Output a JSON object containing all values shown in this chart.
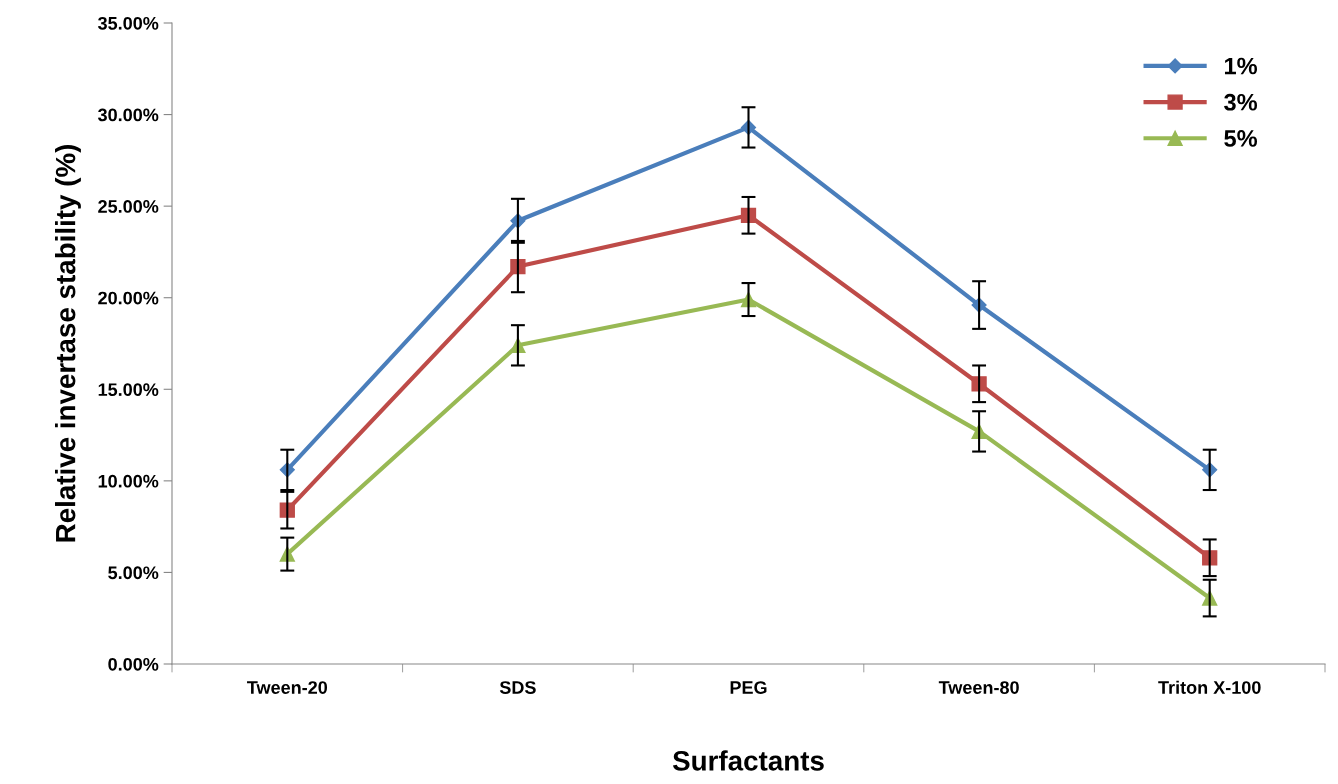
{
  "chart_data": {
    "type": "line",
    "xlabel": "Surfactants",
    "ylabel": "Relative invertase stability (%)",
    "categories": [
      "Tween-20",
      "SDS",
      "PEG",
      "Tween-80",
      "Triton X-100"
    ],
    "series": [
      {
        "name": "1%",
        "color": "#4a7ebb",
        "marker": "diamond",
        "values": [
          10.6,
          24.2,
          29.3,
          19.6,
          10.6
        ],
        "errors": [
          1.1,
          1.2,
          1.1,
          1.3,
          1.1
        ]
      },
      {
        "name": "3%",
        "color": "#be4b48",
        "marker": "square",
        "values": [
          8.4,
          21.7,
          24.5,
          15.3,
          5.8
        ],
        "errors": [
          1.0,
          1.4,
          1.0,
          1.0,
          1.0
        ]
      },
      {
        "name": "5%",
        "color": "#98b954",
        "marker": "triangle",
        "values": [
          6.0,
          17.4,
          19.9,
          12.7,
          3.6
        ],
        "errors": [
          0.9,
          1.1,
          0.9,
          1.1,
          1.0
        ]
      }
    ],
    "ylim": [
      0,
      35
    ],
    "yticks": [
      {
        "value": 0,
        "label": "0.00%"
      },
      {
        "value": 5,
        "label": "5.00%"
      },
      {
        "value": 10,
        "label": "10.00%"
      },
      {
        "value": 15,
        "label": "15.00%"
      },
      {
        "value": 20,
        "label": "20.00%"
      },
      {
        "value": 25,
        "label": "25.00%"
      },
      {
        "value": 30,
        "label": "30.00%"
      },
      {
        "value": 35,
        "label": "35.00%"
      }
    ],
    "grid": false,
    "legend": "top right",
    "line_style": "solid"
  }
}
